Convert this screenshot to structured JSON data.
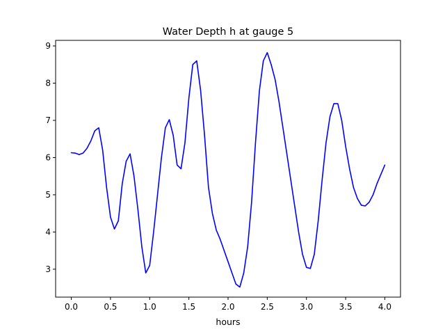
{
  "chart_data": {
    "type": "line",
    "title": "Water Depth h at gauge 5",
    "xlabel": "hours",
    "ylabel": "",
    "xlim": [
      -0.2,
      4.2
    ],
    "ylim": [
      2.25,
      9.15
    ],
    "grid": false,
    "xticks": [
      0.0,
      0.5,
      1.0,
      1.5,
      2.0,
      2.5,
      3.0,
      3.5,
      4.0
    ],
    "xtick_labels": [
      "0.0",
      "0.5",
      "1.0",
      "1.5",
      "2.0",
      "2.5",
      "3.0",
      "3.5",
      "4.0"
    ],
    "yticks": [
      3,
      4,
      5,
      6,
      7,
      8,
      9
    ],
    "ytick_labels": [
      "3",
      "4",
      "5",
      "6",
      "7",
      "8",
      "9"
    ],
    "series": [
      {
        "name": "",
        "color": "#0000ff",
        "x": [
          0.0,
          0.05,
          0.1,
          0.15,
          0.2,
          0.25,
          0.3,
          0.35,
          0.4,
          0.45,
          0.5,
          0.55,
          0.6,
          0.65,
          0.7,
          0.75,
          0.8,
          0.85,
          0.9,
          0.95,
          1.0,
          1.05,
          1.1,
          1.15,
          1.2,
          1.25,
          1.3,
          1.35,
          1.4,
          1.45,
          1.5,
          1.55,
          1.6,
          1.65,
          1.7,
          1.75,
          1.8,
          1.85,
          1.9,
          1.95,
          2.0,
          2.05,
          2.1,
          2.15,
          2.2,
          2.25,
          2.3,
          2.35,
          2.4,
          2.45,
          2.5,
          2.55,
          2.6,
          2.65,
          2.7,
          2.75,
          2.8,
          2.85,
          2.9,
          2.95,
          3.0,
          3.05,
          3.1,
          3.15,
          3.2,
          3.25,
          3.3,
          3.35,
          3.4,
          3.45,
          3.5,
          3.55,
          3.6,
          3.65,
          3.7,
          3.75,
          3.8,
          3.85,
          3.9,
          3.95,
          4.0
        ],
        "y": [
          6.13,
          6.12,
          6.08,
          6.12,
          6.25,
          6.45,
          6.72,
          6.8,
          6.2,
          5.2,
          4.4,
          4.08,
          4.3,
          5.3,
          5.9,
          6.1,
          5.5,
          4.6,
          3.6,
          2.9,
          3.1,
          4.0,
          5.0,
          6.0,
          6.8,
          7.02,
          6.6,
          5.8,
          5.7,
          6.4,
          7.6,
          8.5,
          8.6,
          7.8,
          6.6,
          5.2,
          4.5,
          4.05,
          3.8,
          3.5,
          3.2,
          2.9,
          2.6,
          2.52,
          2.9,
          3.6,
          4.8,
          6.4,
          7.8,
          8.6,
          8.82,
          8.5,
          8.1,
          7.5,
          6.8,
          6.1,
          5.4,
          4.7,
          4.0,
          3.4,
          3.05,
          3.02,
          3.4,
          4.3,
          5.4,
          6.4,
          7.1,
          7.45,
          7.45,
          7.0,
          6.3,
          5.7,
          5.2,
          4.9,
          4.72,
          4.7,
          4.8,
          5.0,
          5.3,
          5.55,
          5.8
        ]
      }
    ]
  }
}
